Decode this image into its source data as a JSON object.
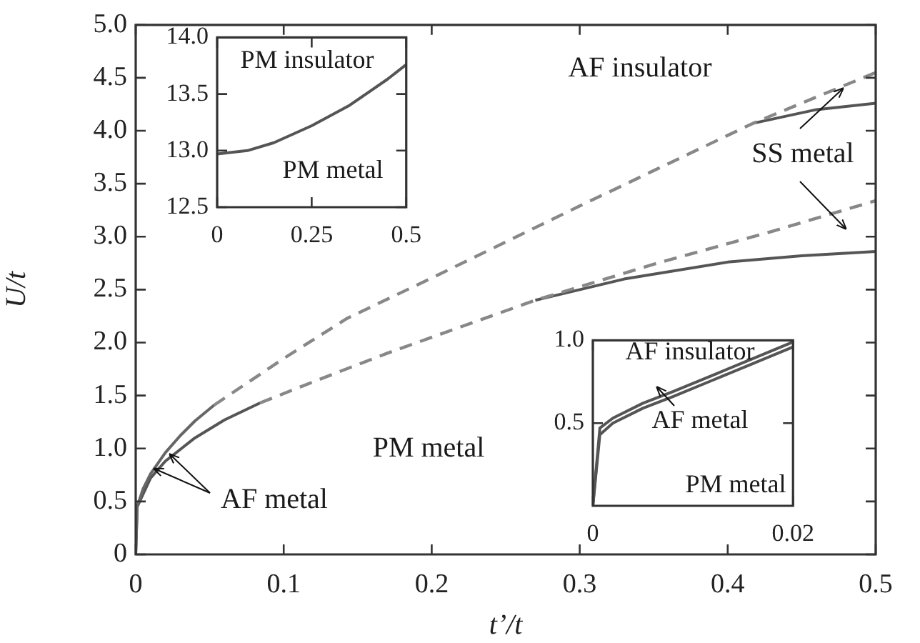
{
  "chart_data": [
    {
      "type": "line",
      "xlabel": "t’/t",
      "ylabel": "U/t",
      "xlim": [
        0,
        0.5
      ],
      "ylim": [
        0,
        5.0
      ],
      "xticks": [
        0,
        0.1,
        0.2,
        0.3,
        0.4,
        0.5
      ],
      "yticks": [
        0,
        0.5,
        {
          "value": 1,
          "label": "1.0"
        },
        1.5,
        {
          "value": 2,
          "label": "2.0"
        },
        2.5,
        {
          "value": 3,
          "label": "3.0"
        },
        3.5,
        {
          "value": 4,
          "label": "4.0"
        },
        4.5,
        {
          "value": 5,
          "label": "5.0"
        }
      ],
      "grid": false,
      "legend": false,
      "marker": "none",
      "series": [
        {
          "color": "#666666",
          "line_style": "solid",
          "x": [
            0,
            0.001,
            0.005,
            0.01,
            0.02,
            0.03,
            0.04,
            0.053
          ],
          "values": [
            0,
            0.45,
            0.62,
            0.76,
            0.96,
            1.12,
            1.26,
            1.41
          ]
        },
        {
          "color": "#888888",
          "line_style": "dashed",
          "x": [
            0.053,
            0.1,
            0.143,
            0.2,
            0.3,
            0.417,
            0.5
          ],
          "values": [
            1.41,
            1.85,
            2.23,
            2.61,
            3.29,
            4.07,
            4.55
          ]
        },
        {
          "color": "#555555",
          "line_style": "solid",
          "x": [
            0.417,
            0.46,
            0.5
          ],
          "values": [
            4.07,
            4.2,
            4.26
          ]
        },
        {
          "color": "#555555",
          "line_style": "solid",
          "x": [
            0,
            0.001,
            0.01,
            0.02,
            0.04,
            0.06,
            0.084
          ],
          "values": [
            0,
            0.45,
            0.72,
            0.88,
            1.1,
            1.27,
            1.43
          ]
        },
        {
          "color": "#888888",
          "line_style": "dashed",
          "x": [
            0.084,
            0.12,
            0.17,
            0.22,
            0.27,
            0.35,
            0.43,
            0.5
          ],
          "values": [
            1.43,
            1.63,
            1.9,
            2.15,
            2.4,
            2.74,
            3.05,
            3.34
          ]
        },
        {
          "color": "#555555",
          "line_style": "solid",
          "x": [
            0.27,
            0.33,
            0.4,
            0.45,
            0.5
          ],
          "values": [
            2.4,
            2.6,
            2.76,
            2.82,
            2.86
          ]
        }
      ],
      "annotations": [
        "AF insulator",
        "PM metal",
        "AF metal",
        "SS metal"
      ]
    },
    {
      "type": "line",
      "xlim": [
        0,
        0.5
      ],
      "ylim": [
        12.5,
        14.0
      ],
      "xticks": [
        0,
        0.25,
        0.5
      ],
      "yticks": [
        12.5,
        {
          "value": 13,
          "label": "13.0"
        },
        13.5,
        {
          "value": 14,
          "label": "14.0"
        }
      ],
      "grid": false,
      "legend": false,
      "marker": "none",
      "series": [
        {
          "color": "#555555",
          "line_style": "solid",
          "x": [
            0,
            0.08,
            0.15,
            0.25,
            0.35,
            0.45,
            0.5
          ],
          "values": [
            12.97,
            13.0,
            13.07,
            13.22,
            13.4,
            13.63,
            13.76
          ]
        }
      ],
      "annotations": [
        "PM insulator",
        "PM metal"
      ]
    },
    {
      "type": "line",
      "xlim": [
        0,
        0.02
      ],
      "ylim": [
        0,
        1.0
      ],
      "xticks": [
        0,
        0.02
      ],
      "yticks": [
        0.5,
        {
          "value": 1,
          "label": "1.0"
        }
      ],
      "grid": false,
      "legend": false,
      "marker": "none",
      "series": [
        {
          "color": "#555555",
          "line_style": "solid",
          "x": [
            0,
            0.0007,
            0.002,
            0.005,
            0.008,
            0.012,
            0.016,
            0.02
          ],
          "values": [
            0,
            0.47,
            0.53,
            0.62,
            0.69,
            0.79,
            0.89,
            0.99
          ]
        },
        {
          "color": "#555555",
          "line_style": "solid",
          "x": [
            0,
            0.0007,
            0.002,
            0.005,
            0.008,
            0.012,
            0.016,
            0.02
          ],
          "values": [
            0,
            0.43,
            0.5,
            0.59,
            0.66,
            0.76,
            0.86,
            0.96
          ]
        }
      ],
      "annotations": [
        "AF insulator",
        "AF metal",
        "PM metal"
      ]
    }
  ]
}
